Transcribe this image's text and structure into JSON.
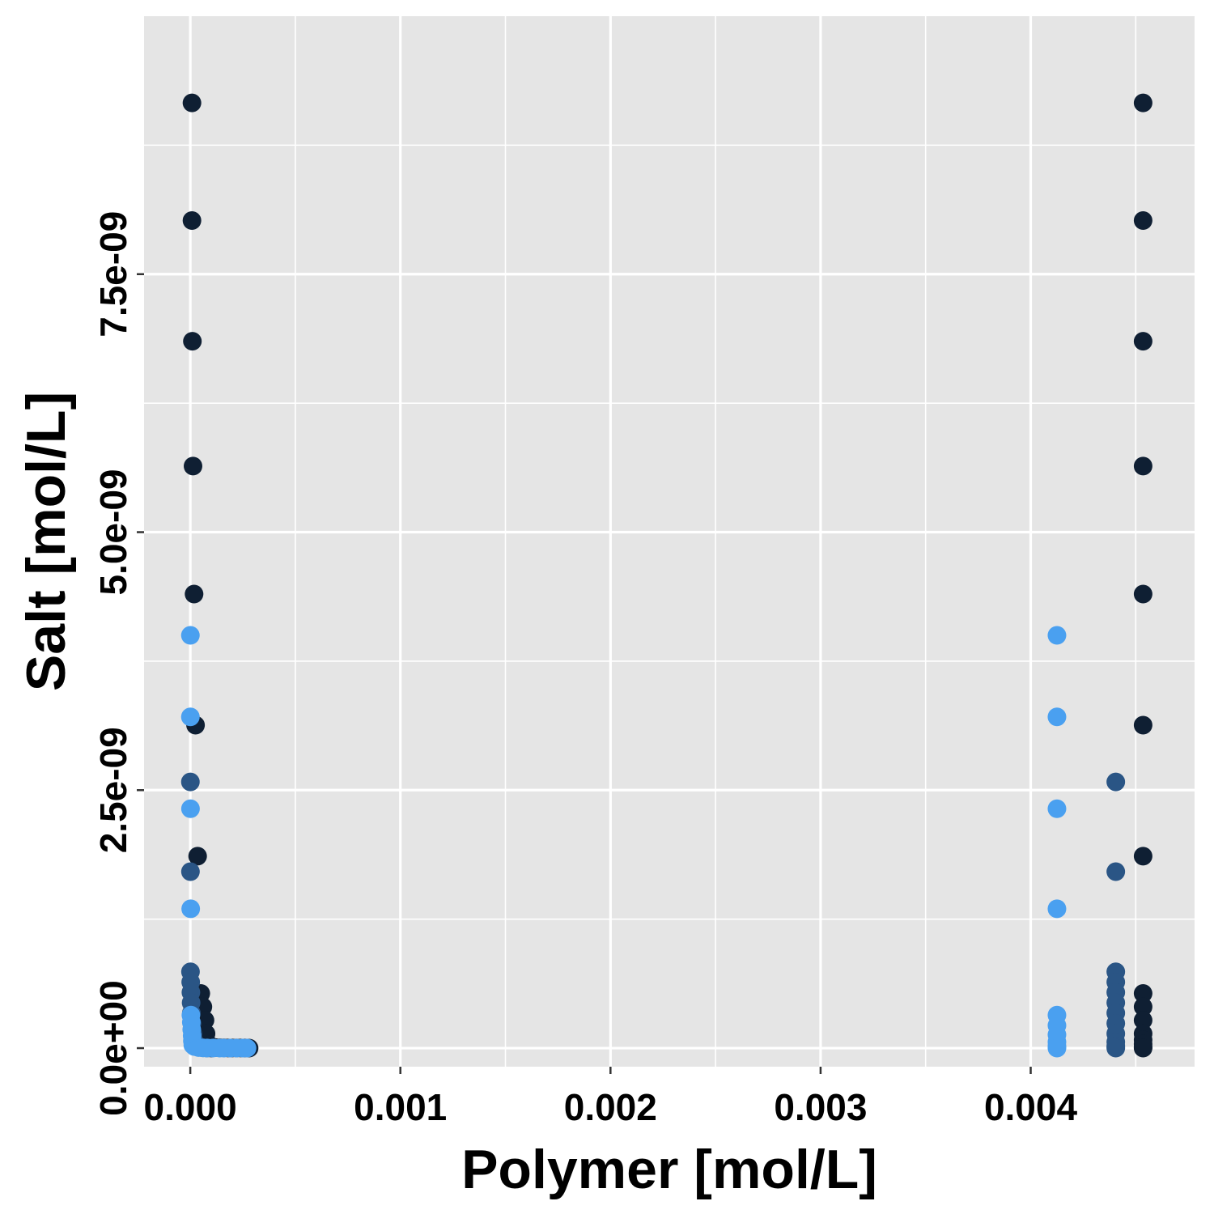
{
  "chart_data": {
    "type": "scatter",
    "xlabel": "Polymer [mol/L]",
    "ylabel": "Salt [mol/L]",
    "xlim": [
      -0.00022,
      0.00478
    ],
    "ylim": [
      -1.8e-10,
      1e-08
    ],
    "x_ticks": [
      0.0,
      0.001,
      0.002,
      0.003,
      0.004
    ],
    "x_tick_labels": [
      "0.000",
      "0.001",
      "0.002",
      "0.003",
      "0.004"
    ],
    "y_ticks": [
      0,
      2.5e-09,
      5e-09,
      7.5e-09
    ],
    "y_tick_labels": [
      "0.0e+00",
      "2.5e-09",
      "5.0e-09",
      "7.5e-09"
    ],
    "background": "#e5e5e5",
    "grid": true,
    "legend": "none",
    "series": [
      {
        "color": "#0f1f33",
        "points": [
          [
            8e-06,
            9.16e-09
          ],
          [
            8e-06,
            8.02e-09
          ],
          [
            1e-05,
            6.85e-09
          ],
          [
            1.3e-05,
            5.64e-09
          ],
          [
            1.8e-05,
            4.4e-09
          ],
          [
            2.5e-05,
            3.13e-09
          ],
          [
            3.5e-05,
            1.86e-09
          ],
          [
            5e-05,
            5.3e-10
          ],
          [
            6e-05,
            4e-10
          ],
          [
            7e-05,
            2.7e-10
          ],
          [
            7.5e-05,
            1.4e-10
          ],
          [
            9e-05,
            3e-11
          ],
          [
            0.0001,
            1e-11
          ],
          [
            0.00012,
            5e-12
          ],
          [
            0.00014,
            3e-12
          ],
          [
            0.00016,
            2e-12
          ],
          [
            0.00018,
            1e-12
          ],
          [
            0.0002,
            1e-12
          ],
          [
            0.00022,
            1e-12
          ],
          [
            0.00024,
            1e-12
          ],
          [
            0.00026,
            1e-12
          ],
          [
            0.00028,
            0
          ],
          [
            0.004535,
            9.16e-09
          ],
          [
            0.004535,
            8.02e-09
          ],
          [
            0.004535,
            6.85e-09
          ],
          [
            0.004535,
            5.64e-09
          ],
          [
            0.004535,
            4.4e-09
          ],
          [
            0.004535,
            3.13e-09
          ],
          [
            0.004535,
            1.86e-09
          ],
          [
            0.004535,
            5.3e-10
          ],
          [
            0.004535,
            4e-10
          ],
          [
            0.004535,
            2.7e-10
          ],
          [
            0.004535,
            1.4e-10
          ],
          [
            0.004535,
            8e-11
          ],
          [
            0.004535,
            4e-11
          ],
          [
            0.004535,
            1e-11
          ],
          [
            0.004535,
            0
          ]
        ]
      },
      {
        "color": "#2a5585",
        "points": [
          [
            5e-07,
            2.58e-09
          ],
          [
            8e-07,
            1.71e-09
          ],
          [
            1e-06,
            7.4e-10
          ],
          [
            2e-06,
            6.4e-10
          ],
          [
            3e-06,
            5.4e-10
          ],
          [
            4e-06,
            4.4e-10
          ],
          [
            5e-06,
            3.4e-10
          ],
          [
            8e-06,
            2.4e-10
          ],
          [
            1.2e-05,
            1.4e-10
          ],
          [
            2e-05,
            6e-11
          ],
          [
            3e-05,
            2e-11
          ],
          [
            4e-05,
            8e-12
          ],
          [
            6e-05,
            3e-12
          ],
          [
            8e-05,
            1e-12
          ],
          [
            0.0001,
            0
          ],
          [
            0.004405,
            2.58e-09
          ],
          [
            0.004405,
            1.71e-09
          ],
          [
            0.004405,
            7.4e-10
          ],
          [
            0.004405,
            6.4e-10
          ],
          [
            0.004405,
            5.4e-10
          ],
          [
            0.004405,
            4.4e-10
          ],
          [
            0.004405,
            3.4e-10
          ],
          [
            0.004405,
            2.4e-10
          ],
          [
            0.004405,
            1.4e-10
          ],
          [
            0.004405,
            6e-11
          ],
          [
            0.004405,
            2e-11
          ],
          [
            0.004405,
            0
          ]
        ]
      },
      {
        "color": "#4aa0f0",
        "points": [
          [
            5e-07,
            4e-09
          ],
          [
            5e-07,
            3.21e-09
          ],
          [
            1e-06,
            2.32e-09
          ],
          [
            2e-06,
            1.35e-09
          ],
          [
            3e-06,
            3.2e-10
          ],
          [
            5e-06,
            2.5e-10
          ],
          [
            7e-06,
            1.8e-10
          ],
          [
            9e-06,
            1.2e-10
          ],
          [
            1e-05,
            7e-11
          ],
          [
            1.2e-05,
            3e-11
          ],
          [
            2e-05,
            1.5e-11
          ],
          [
            4e-05,
            5e-12
          ],
          [
            6e-05,
            2e-12
          ],
          [
            8e-05,
            1e-12
          ],
          [
            0.00011,
            1e-12
          ],
          [
            0.00014,
            0
          ],
          [
            0.00016,
            0
          ],
          [
            0.00019,
            0
          ],
          [
            0.00022,
            0
          ],
          [
            0.00025,
            0
          ],
          [
            0.00027,
            0
          ],
          [
            0.004125,
            4e-09
          ],
          [
            0.004125,
            3.21e-09
          ],
          [
            0.004125,
            2.32e-09
          ],
          [
            0.004125,
            1.35e-09
          ],
          [
            0.004125,
            3.2e-10
          ],
          [
            0.004125,
            2.2e-10
          ],
          [
            0.004125,
            1.3e-10
          ],
          [
            0.004125,
            6e-11
          ],
          [
            0.004125,
            2e-11
          ],
          [
            0.004125,
            0
          ]
        ]
      }
    ]
  }
}
